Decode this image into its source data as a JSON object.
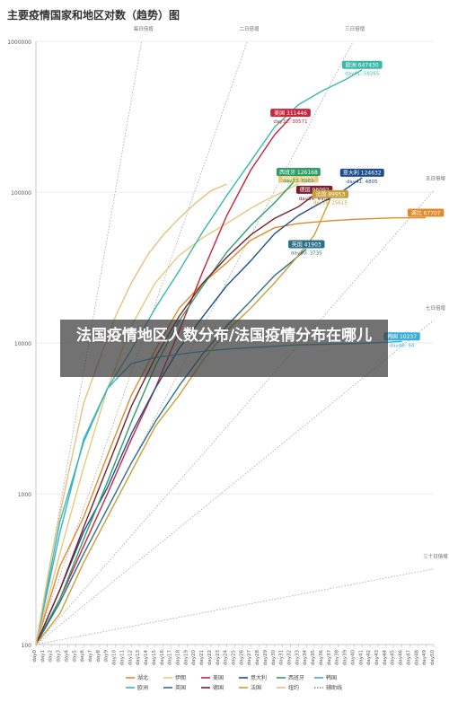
{
  "chart_data": {
    "type": "line",
    "title": "主要疫情国家和地区对数（趋势）图",
    "yscale": "log",
    "ylim": [
      100,
      1000000
    ],
    "y_ticks": [
      "1000000",
      "100000",
      "10000",
      "1000",
      "100"
    ],
    "x_ticks": [
      "day0",
      "day1",
      "day2",
      "day3",
      "day4",
      "day5",
      "day6",
      "day7",
      "day8",
      "day9",
      "day10",
      "day11",
      "day12",
      "day13",
      "day14",
      "day15",
      "day16",
      "day17",
      "day18",
      "day19",
      "day20",
      "day21",
      "day22",
      "day23",
      "day24",
      "day25",
      "day26",
      "day27",
      "day28",
      "day29",
      "day30",
      "day31",
      "day32",
      "day33",
      "day34",
      "day35",
      "day36",
      "day37",
      "day38",
      "day39",
      "day40",
      "day41",
      "day42",
      "day43",
      "day44",
      "day45",
      "day46",
      "day47",
      "day48",
      "day49",
      "day50"
    ],
    "doubling_lines": [
      {
        "label": "每日倍增",
        "days": 1
      },
      {
        "label": "二日倍增",
        "days": 2
      },
      {
        "label": "三日倍增",
        "days": 3
      },
      {
        "label": "五日倍增",
        "days": 5
      },
      {
        "label": "七日倍增",
        "days": 7
      },
      {
        "label": "三十日倍增",
        "days": 30
      }
    ],
    "series": [
      {
        "name": "湖北",
        "color": "#e08a2a",
        "points": [
          [
            0,
            100
          ],
          [
            3,
            330
          ],
          [
            6,
            700
          ],
          [
            9,
            1800
          ],
          [
            12,
            4500
          ],
          [
            15,
            9000
          ],
          [
            18,
            17000
          ],
          [
            21,
            25000
          ],
          [
            24,
            34000
          ],
          [
            27,
            48000
          ],
          [
            30,
            58000
          ],
          [
            33,
            62000
          ],
          [
            36,
            64000
          ],
          [
            40,
            66000
          ],
          [
            45,
            67500
          ],
          [
            49,
            67707
          ]
        ],
        "label": "湖北 67707"
      },
      {
        "name": "伊朗",
        "color": "#e8c97a",
        "points": [
          [
            0,
            100
          ],
          [
            3,
            400
          ],
          [
            6,
            1500
          ],
          [
            9,
            5000
          ],
          [
            12,
            13000
          ],
          [
            15,
            25000
          ],
          [
            18,
            38000
          ],
          [
            21,
            50000
          ],
          [
            24,
            62000
          ],
          [
            27,
            78000
          ],
          [
            29,
            89000
          ],
          [
            31,
            100000
          ],
          [
            33,
            113833
          ]
        ],
        "label": "伊朗 113833"
      },
      {
        "name": "美国",
        "color": "#c8243c",
        "points": [
          [
            0,
            100
          ],
          [
            3,
            200
          ],
          [
            6,
            450
          ],
          [
            9,
            1000
          ],
          [
            12,
            2300
          ],
          [
            15,
            5000
          ],
          [
            18,
            12000
          ],
          [
            21,
            30000
          ],
          [
            24,
            70000
          ],
          [
            27,
            140000
          ],
          [
            30,
            240000
          ],
          [
            32,
            311446
          ]
        ],
        "label": "美国 311446",
        "annotation": "day32: 30571"
      },
      {
        "name": "意大利",
        "color": "#1f4e8c",
        "points": [
          [
            0,
            100
          ],
          [
            3,
            230
          ],
          [
            6,
            560
          ],
          [
            9,
            1100
          ],
          [
            12,
            2500
          ],
          [
            15,
            5000
          ],
          [
            18,
            9200
          ],
          [
            21,
            15000
          ],
          [
            24,
            24000
          ],
          [
            27,
            35000
          ],
          [
            30,
            53000
          ],
          [
            33,
            70000
          ],
          [
            36,
            86000
          ],
          [
            38,
            97000
          ],
          [
            41,
            124632
          ]
        ],
        "label": "意大利 124632",
        "annotation": "day41: 4805"
      },
      {
        "name": "西班牙",
        "color": "#2e9e68",
        "points": [
          [
            0,
            100
          ],
          [
            3,
            200
          ],
          [
            6,
            500
          ],
          [
            9,
            1200
          ],
          [
            12,
            3000
          ],
          [
            15,
            7000
          ],
          [
            18,
            14000
          ],
          [
            21,
            24000
          ],
          [
            24,
            40000
          ],
          [
            27,
            60000
          ],
          [
            30,
            85000
          ],
          [
            33,
            126168
          ]
        ],
        "label": "西班牙 126168",
        "annotation": "day33: 6989"
      },
      {
        "name": "韩国",
        "color": "#3aaed8",
        "points": [
          [
            0,
            100
          ],
          [
            3,
            550
          ],
          [
            6,
            2300
          ],
          [
            9,
            5000
          ],
          [
            12,
            7300
          ],
          [
            15,
            8000
          ],
          [
            18,
            8400
          ],
          [
            21,
            8800
          ],
          [
            24,
            9100
          ],
          [
            27,
            9300
          ],
          [
            30,
            9500
          ],
          [
            33,
            9700
          ],
          [
            36,
            9800
          ],
          [
            40,
            9900
          ],
          [
            44,
            10100
          ],
          [
            46,
            10237
          ]
        ],
        "label": "韩国 10237",
        "annotation": "day46: 94"
      },
      {
        "name": "欧洲",
        "color": "#3ab8a8",
        "points": [
          [
            0,
            100
          ],
          [
            3,
            650
          ],
          [
            6,
            2200
          ],
          [
            9,
            5000
          ],
          [
            12,
            9000
          ],
          [
            15,
            17000
          ],
          [
            18,
            30000
          ],
          [
            21,
            55000
          ],
          [
            24,
            95000
          ],
          [
            27,
            160000
          ],
          [
            30,
            270000
          ],
          [
            33,
            380000
          ],
          [
            36,
            470000
          ],
          [
            39,
            560000
          ],
          [
            41,
            647430
          ]
        ],
        "label": "欧洲 647430",
        "annotation": "day41: 58265"
      },
      {
        "name": "英国",
        "color": "#2b6f8a",
        "points": [
          [
            0,
            100
          ],
          [
            3,
            190
          ],
          [
            6,
            400
          ],
          [
            9,
            800
          ],
          [
            12,
            1600
          ],
          [
            15,
            3000
          ],
          [
            18,
            5200
          ],
          [
            21,
            8500
          ],
          [
            24,
            13000
          ],
          [
            27,
            19000
          ],
          [
            30,
            28000
          ],
          [
            32,
            34000
          ],
          [
            34,
            41903
          ]
        ],
        "label": "英国 41903",
        "annotation": "day30: 3735"
      },
      {
        "name": "德国",
        "color": "#7a1e2e",
        "points": [
          [
            0,
            100
          ],
          [
            3,
            230
          ],
          [
            6,
            600
          ],
          [
            9,
            1500
          ],
          [
            12,
            3800
          ],
          [
            15,
            8000
          ],
          [
            18,
            15000
          ],
          [
            21,
            25000
          ],
          [
            24,
            37000
          ],
          [
            27,
            52000
          ],
          [
            30,
            67000
          ],
          [
            33,
            80000
          ],
          [
            35,
            96092
          ]
        ],
        "label": "德国 96092",
        "annotation": "day34: 4933"
      },
      {
        "name": "法国",
        "color": "#c8a03a",
        "points": [
          [
            0,
            100
          ],
          [
            3,
            160
          ],
          [
            6,
            350
          ],
          [
            9,
            700
          ],
          [
            12,
            1400
          ],
          [
            15,
            2800
          ],
          [
            18,
            4500
          ],
          [
            21,
            7700
          ],
          [
            24,
            12000
          ],
          [
            27,
            17000
          ],
          [
            30,
            25000
          ],
          [
            33,
            38000
          ],
          [
            35,
            52000
          ],
          [
            37,
            89953
          ]
        ],
        "label": "法国 89953",
        "annotation": "day35: 25615"
      },
      {
        "name": "纽约",
        "color": "#e8c080",
        "points": [
          [
            0,
            100
          ],
          [
            2,
            400
          ],
          [
            4,
            1300
          ],
          [
            6,
            4000
          ],
          [
            8,
            7800
          ],
          [
            10,
            15000
          ],
          [
            12,
            25000
          ],
          [
            14,
            38000
          ],
          [
            16,
            52000
          ],
          [
            18,
            67000
          ],
          [
            20,
            84000
          ],
          [
            22,
            102000
          ],
          [
            24,
            113000
          ]
        ],
        "label": ""
      }
    ],
    "legend": {
      "position": "bottom",
      "items": [
        "湖北",
        "伊朗",
        "美国",
        "意大利",
        "西班牙",
        "韩国",
        "欧洲",
        "英国",
        "德国",
        "法国",
        "纽约",
        "辅助线"
      ]
    }
  },
  "overlay": {
    "title": "法国疫情地区人数分布/法国疫情分布在哪儿"
  }
}
